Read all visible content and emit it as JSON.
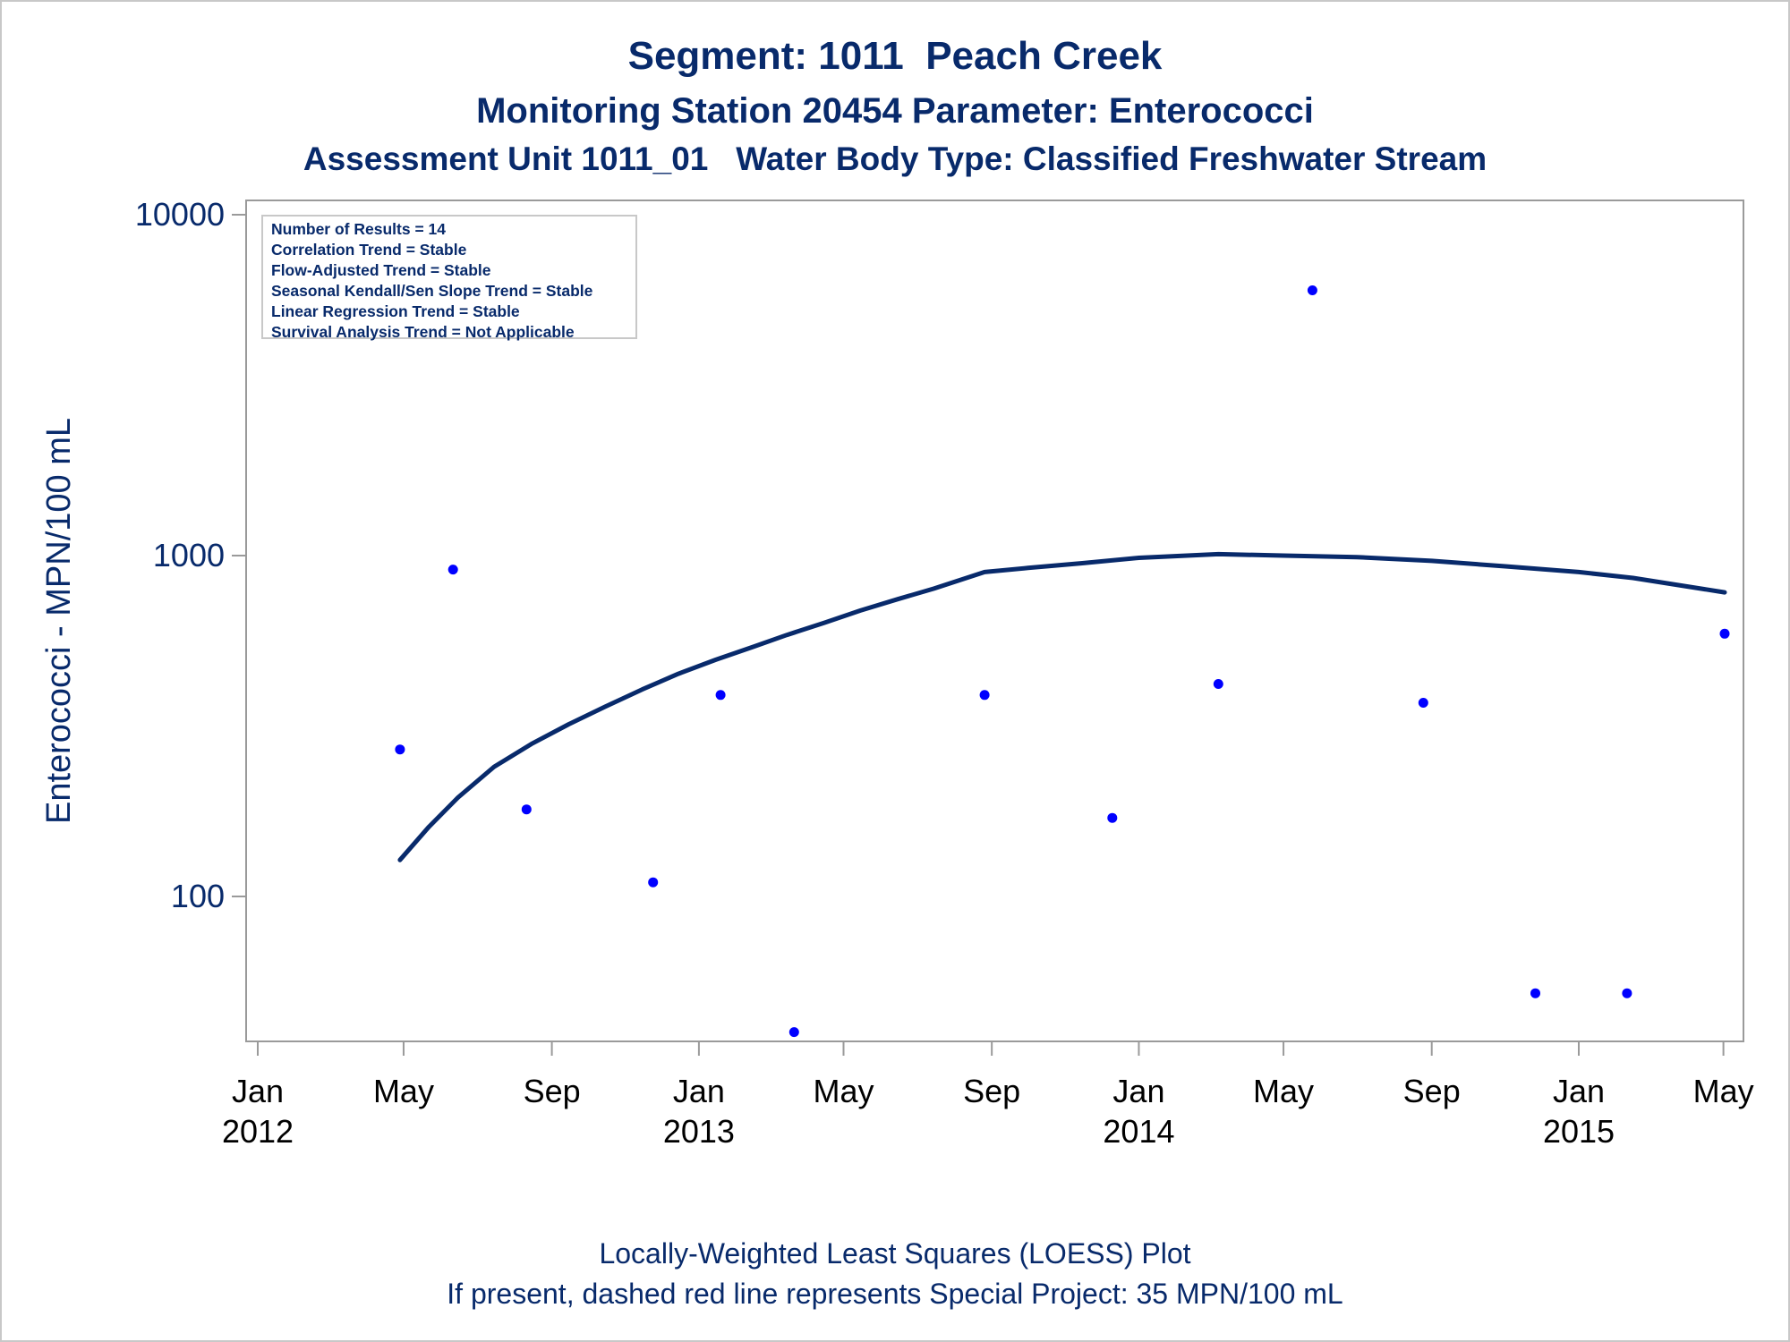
{
  "title_lines": [
    "Segment: 1011  Peach Creek",
    "Monitoring Station 20454 Parameter: Enterococci",
    "Assessment Unit 1011_01   Water Body Type: Classified Freshwater Stream"
  ],
  "footnotes": [
    "Locally-Weighted Least Squares (LOESS) Plot",
    "If present, dashed red line represents Special Project: 35 MPN/100 mL"
  ],
  "inset": {
    "lines": [
      "Number of Results = 14",
      "Correlation Trend = Stable",
      "Flow-Adjusted Trend = Stable",
      "Seasonal Kendall/Sen Slope Trend = Stable",
      "Linear Regression Trend = Stable",
      "Survival Analysis Trend = Not Applicable"
    ]
  },
  "colors": {
    "text": "#082a6b",
    "points": "#0000ff",
    "loess_line": "#082a6b",
    "axis_frame": "#9a9a9a"
  },
  "chart_data": {
    "type": "scatter",
    "title": "Segment: 1011  Peach Creek",
    "xlabel": "",
    "ylabel": "Enterococci - MPN/100 mL",
    "y_scale": "log",
    "ylim": [
      40,
      10000
    ],
    "xlim": [
      "2012-01-01",
      "2015-05-05"
    ],
    "y_ticks": [
      {
        "value": 100,
        "label": "100"
      },
      {
        "value": 1000,
        "label": "1000"
      },
      {
        "value": 10000,
        "label": "10000"
      }
    ],
    "x_ticks": [
      {
        "date": "2012-01-01",
        "label": [
          "Jan",
          "2012"
        ]
      },
      {
        "date": "2012-05-01",
        "label": [
          "May"
        ]
      },
      {
        "date": "2012-09-01",
        "label": [
          "Sep"
        ]
      },
      {
        "date": "2013-01-01",
        "label": [
          "Jan",
          "2013"
        ]
      },
      {
        "date": "2013-05-01",
        "label": [
          "May"
        ]
      },
      {
        "date": "2013-09-01",
        "label": [
          "Sep"
        ]
      },
      {
        "date": "2014-01-01",
        "label": [
          "Jan",
          "2014"
        ]
      },
      {
        "date": "2014-05-01",
        "label": [
          "May"
        ]
      },
      {
        "date": "2014-09-01",
        "label": [
          "Sep"
        ]
      },
      {
        "date": "2015-01-01",
        "label": [
          "Jan",
          "2015"
        ]
      },
      {
        "date": "2015-05-01",
        "label": [
          "May"
        ]
      }
    ],
    "points": [
      {
        "x": "2012-04-28",
        "y": 270
      },
      {
        "x": "2012-06-11",
        "y": 910
      },
      {
        "x": "2012-08-11",
        "y": 180
      },
      {
        "x": "2012-11-24",
        "y": 110
      },
      {
        "x": "2013-01-19",
        "y": 390
      },
      {
        "x": "2013-03-21",
        "y": 40
      },
      {
        "x": "2013-08-26",
        "y": 390
      },
      {
        "x": "2013-12-10",
        "y": 170
      },
      {
        "x": "2014-03-08",
        "y": 420
      },
      {
        "x": "2014-05-25",
        "y": 6000
      },
      {
        "x": "2014-08-25",
        "y": 370
      },
      {
        "x": "2014-11-26",
        "y": 52
      },
      {
        "x": "2015-02-10",
        "y": 52
      },
      {
        "x": "2015-05-02",
        "y": 590
      }
    ],
    "series": [
      {
        "type": "line",
        "points": [
          {
            "x": "2012-04-28",
            "y": 128
          },
          {
            "x": "2012-05-22",
            "y": 160
          },
          {
            "x": "2012-06-15",
            "y": 195
          },
          {
            "x": "2012-07-15",
            "y": 240
          },
          {
            "x": "2012-08-15",
            "y": 280
          },
          {
            "x": "2012-09-15",
            "y": 320
          },
          {
            "x": "2012-10-15",
            "y": 360
          },
          {
            "x": "2012-11-15",
            "y": 405
          },
          {
            "x": "2012-12-15",
            "y": 450
          },
          {
            "x": "2013-01-15",
            "y": 495
          },
          {
            "x": "2013-02-15",
            "y": 540
          },
          {
            "x": "2013-03-15",
            "y": 585
          },
          {
            "x": "2013-04-15",
            "y": 635
          },
          {
            "x": "2013-05-15",
            "y": 690
          },
          {
            "x": "2013-06-15",
            "y": 745
          },
          {
            "x": "2013-07-15",
            "y": 800
          },
          {
            "x": "2013-08-26",
            "y": 895
          },
          {
            "x": "2013-10-01",
            "y": 920
          },
          {
            "x": "2013-11-15",
            "y": 950
          },
          {
            "x": "2014-01-01",
            "y": 985
          },
          {
            "x": "2014-03-08",
            "y": 1010
          },
          {
            "x": "2014-05-01",
            "y": 1000
          },
          {
            "x": "2014-07-01",
            "y": 990
          },
          {
            "x": "2014-09-01",
            "y": 965
          },
          {
            "x": "2014-11-01",
            "y": 930
          },
          {
            "x": "2015-01-01",
            "y": 895
          },
          {
            "x": "2015-02-15",
            "y": 860
          },
          {
            "x": "2015-05-02",
            "y": 780
          }
        ]
      }
    ],
    "grid": false,
    "legend": "none"
  }
}
